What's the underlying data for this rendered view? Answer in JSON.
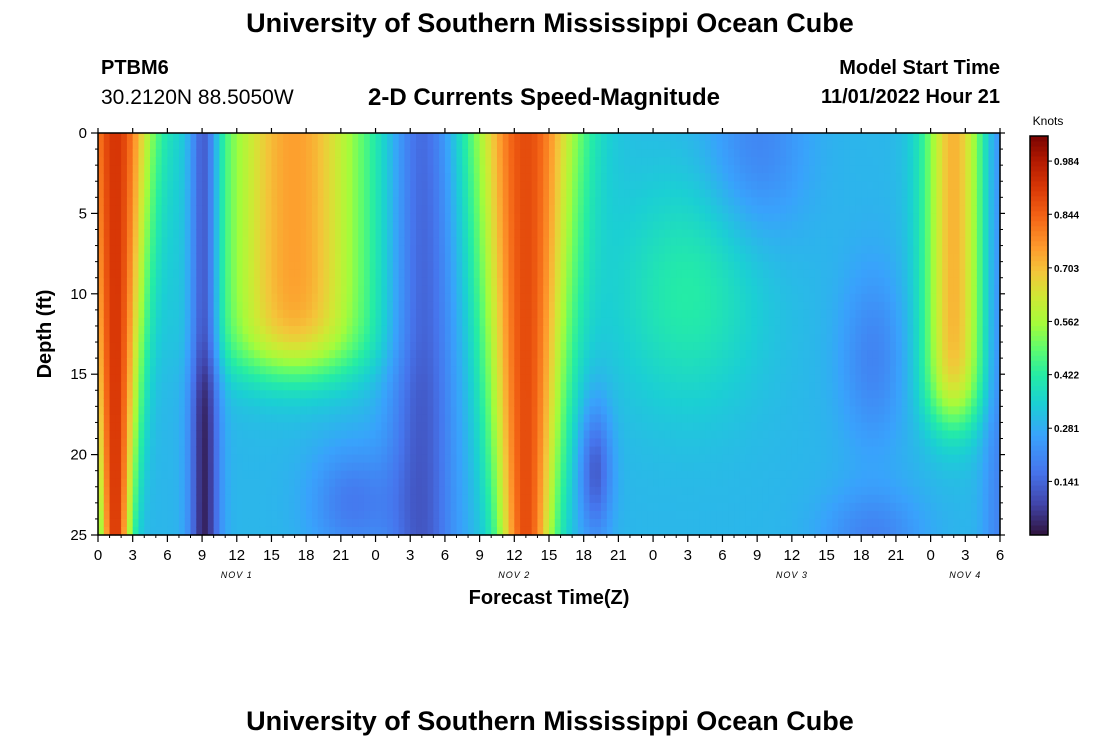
{
  "header": {
    "title": "University of Southern Mississippi Ocean Cube",
    "station_id": "PTBM6",
    "station_coords": "30.2120N  88.5050W",
    "subtitle": "2-D Currents Speed-Magnitude",
    "model_start_label": "Model Start Time",
    "model_start_value": "11/01/2022 Hour 21"
  },
  "footer": {
    "title": "University of Southern Mississippi Ocean Cube"
  },
  "chart_data": {
    "type": "heatmap",
    "xlabel": "Forecast Time(Z)",
    "ylabel": "Depth (ft)",
    "x_range_hours": [
      0,
      78
    ],
    "y_range_ft": [
      0,
      25
    ],
    "y_inverted": true,
    "x_tick_labels": [
      "0",
      "3",
      "6",
      "9",
      "12",
      "15",
      "18",
      "21",
      "0",
      "3",
      "6",
      "9",
      "12",
      "15",
      "18",
      "21",
      "0",
      "3",
      "6",
      "9",
      "12",
      "15",
      "18",
      "21",
      "0",
      "3",
      "6"
    ],
    "y_tick_labels": [
      "0",
      "5",
      "10",
      "15",
      "20",
      "25"
    ],
    "day_labels": [
      {
        "text": "NOV 1",
        "hour": 12
      },
      {
        "text": "NOV 2",
        "hour": 36
      },
      {
        "text": "NOV 3",
        "hour": 60
      },
      {
        "text": "NOV 4",
        "hour": 75
      }
    ],
    "colorbar": {
      "title": "Knots",
      "min": 0,
      "max": 1.05,
      "ticks": [
        "0.984",
        "0.844",
        "0.703",
        "0.562",
        "0.422",
        "0.281",
        "0.141"
      ]
    },
    "value_unit": "Knots",
    "speed_features_knots": [
      {
        "hours": [
          0,
          5.5
        ],
        "depth_ft": [
          0,
          25
        ],
        "speed": 0.92
      },
      {
        "hours": [
          8.5,
          10
        ],
        "depth_ft": [
          0,
          25
        ],
        "speed": 0.05
      },
      {
        "hours": [
          12,
          23
        ],
        "depth_ft": [
          0,
          15
        ],
        "speed": 0.75
      },
      {
        "hours": [
          26,
          30
        ],
        "depth_ft": [
          0,
          25
        ],
        "speed": 0.12
      },
      {
        "hours": [
          34,
          41
        ],
        "depth_ft": [
          0,
          25
        ],
        "speed": 0.82
      },
      {
        "hours": [
          45,
          58
        ],
        "depth_ft": [
          5,
          16
        ],
        "speed": 0.38
      },
      {
        "hours": [
          71,
          76
        ],
        "depth_ft": [
          0,
          18
        ],
        "speed": 0.7
      }
    ]
  }
}
